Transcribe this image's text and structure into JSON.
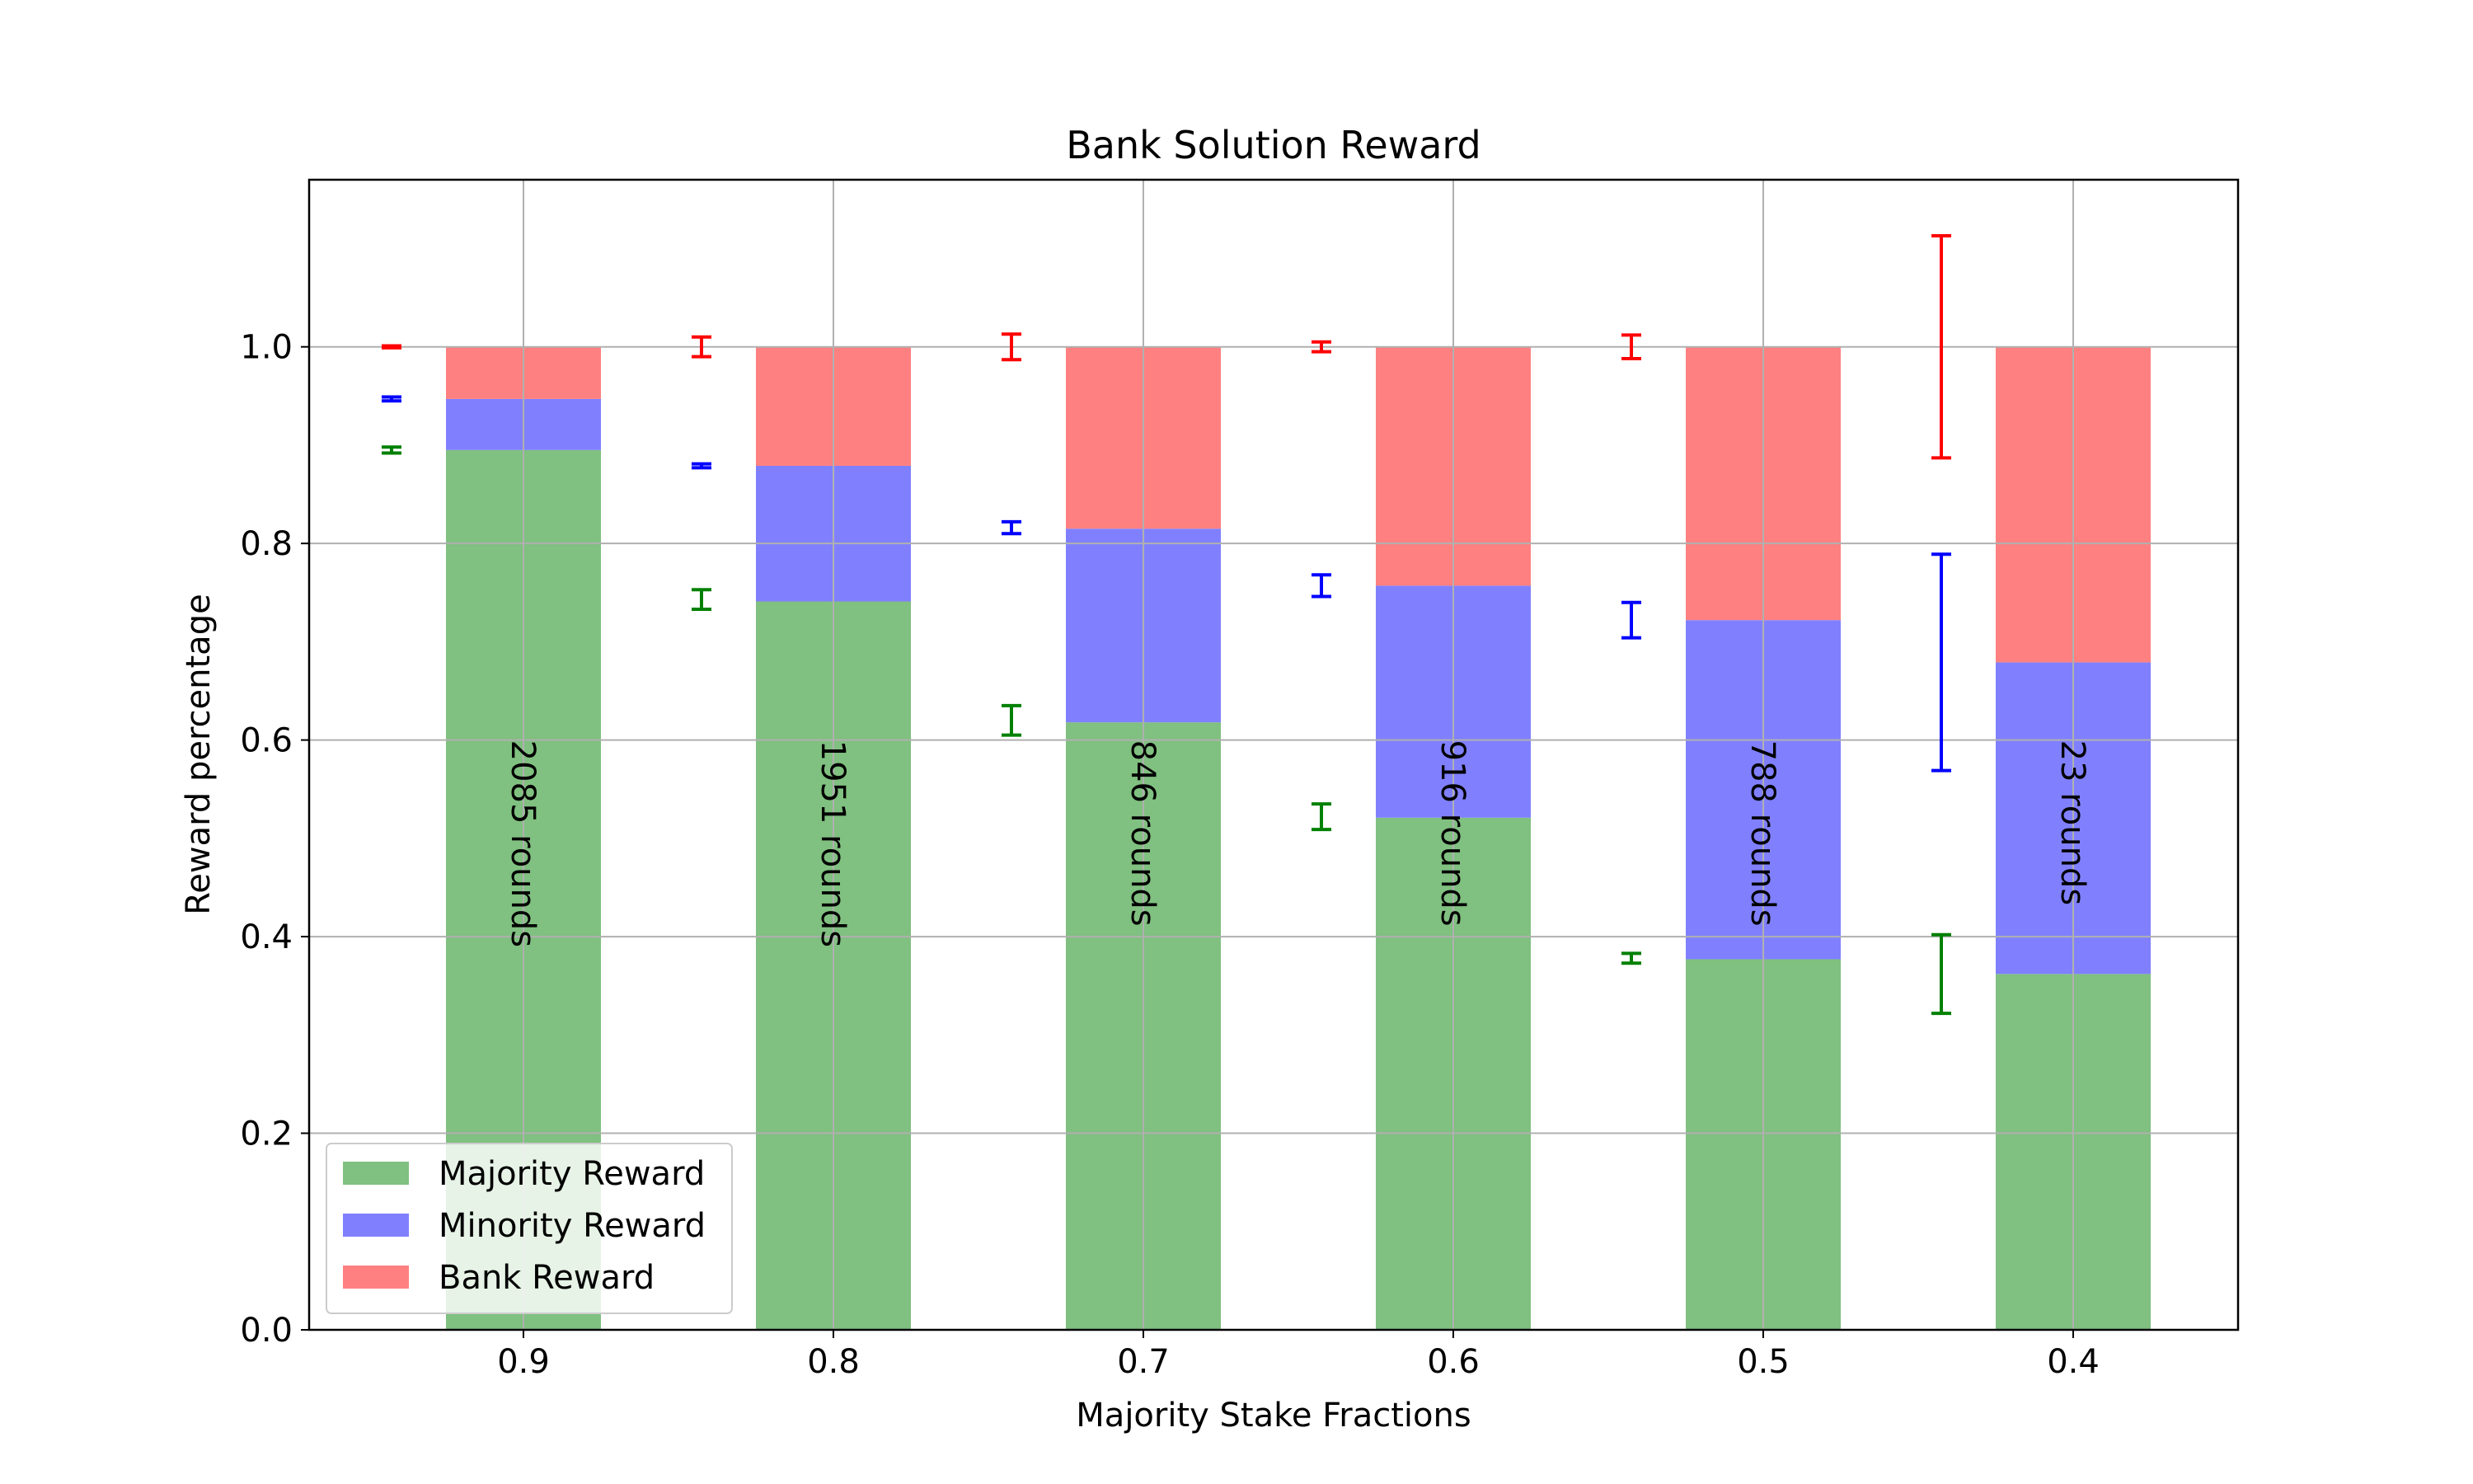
{
  "chart_data": {
    "type": "bar",
    "stacked": true,
    "title": "Bank Solution Reward",
    "xlabel": "Majority Stake Fractions",
    "ylabel": "Reward percentage",
    "categories": [
      "0.9",
      "0.8",
      "0.7",
      "0.6",
      "0.5",
      "0.4"
    ],
    "ylim": [
      0,
      1.17
    ],
    "yticks": [
      "0.0",
      "0.2",
      "0.4",
      "0.6",
      "0.8",
      "1.0"
    ],
    "grid": true,
    "legend_position": "lower-left",
    "series": [
      {
        "name": "Majority Reward",
        "color": "#80c080",
        "error_color": "#008000",
        "values": [
          0.895,
          0.741,
          0.618,
          0.521,
          0.377,
          0.362
        ]
      },
      {
        "name": "Minority Reward",
        "color": "#8080ff",
        "error_color": "#0000ff",
        "values": [
          0.052,
          0.138,
          0.197,
          0.236,
          0.345,
          0.317
        ]
      },
      {
        "name": "Bank Reward",
        "color": "#ff8080",
        "error_color": "#ff0000",
        "values": [
          0.053,
          0.121,
          0.185,
          0.243,
          0.278,
          0.321
        ]
      }
    ],
    "error_bars": [
      {
        "series": "Majority Reward",
        "center": [
          0.895,
          0.743,
          0.62,
          0.522,
          0.378,
          0.362
        ],
        "err": [
          0.003,
          0.01,
          0.015,
          0.013,
          0.005,
          0.04
        ]
      },
      {
        "series": "Minority Reward",
        "center": [
          0.947,
          0.879,
          0.816,
          0.757,
          0.722,
          0.679
        ],
        "err": [
          0.002,
          0.002,
          0.006,
          0.011,
          0.018,
          0.11
        ]
      },
      {
        "series": "Bank Reward",
        "center": [
          1.0,
          1.0,
          1.0,
          1.0,
          1.0,
          1.0
        ],
        "err": [
          0.001,
          0.01,
          0.013,
          0.005,
          0.012,
          0.113
        ]
      }
    ],
    "annotations": [
      "2085 rounds",
      "1951 rounds",
      "846 rounds",
      "916 rounds",
      "788 rounds",
      "23 rounds"
    ]
  }
}
